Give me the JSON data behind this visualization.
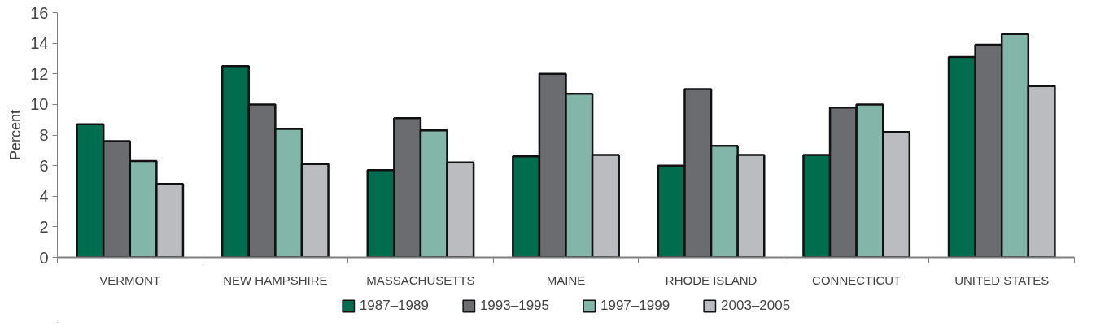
{
  "chart_data": {
    "type": "bar",
    "ylabel": "Percent",
    "categories": [
      "VERMONT",
      "NEW HAMPSHIRE",
      "MASSACHUSETTS",
      "MAINE",
      "RHODE ISLAND",
      "CONNECTICUT",
      "UNITED STATES"
    ],
    "series": [
      {
        "name": "1987–1989",
        "color": "#006e4e",
        "values": [
          8.7,
          12.5,
          5.7,
          6.6,
          6.0,
          6.7,
          13.1
        ]
      },
      {
        "name": "1993–1995",
        "color": "#6b6c70",
        "values": [
          7.6,
          10.0,
          9.1,
          12.0,
          11.0,
          9.8,
          13.9
        ]
      },
      {
        "name": "1997–1999",
        "color": "#82b6a8",
        "values": [
          6.3,
          8.4,
          8.3,
          10.7,
          7.3,
          10.0,
          14.6
        ]
      },
      {
        "name": "2003–2005",
        "color": "#bbbcc0",
        "values": [
          4.8,
          6.1,
          6.2,
          6.7,
          6.7,
          8.2,
          11.2
        ]
      }
    ],
    "ylim": [
      0,
      16
    ],
    "yticks": [
      0,
      2,
      4,
      6,
      8,
      10,
      12,
      14,
      16
    ],
    "grid": false,
    "legend": "bottom"
  }
}
